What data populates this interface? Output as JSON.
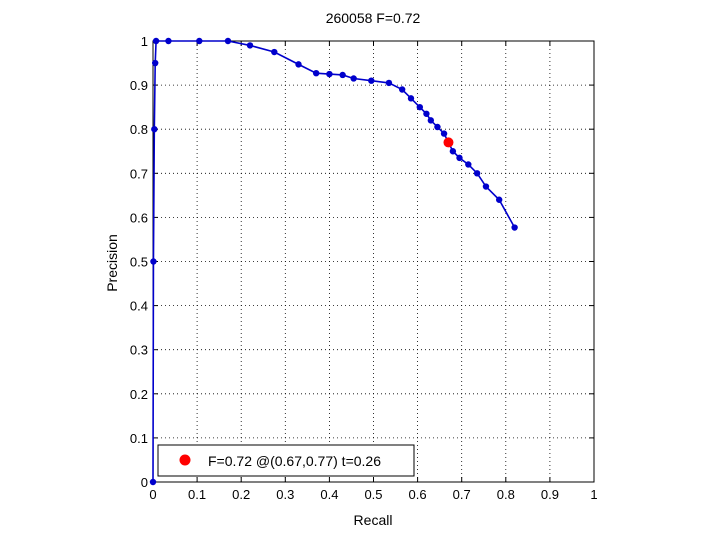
{
  "chart_data": {
    "type": "line",
    "title": "260058 F=0.72",
    "xlabel": "Recall",
    "ylabel": "Precision",
    "xlim": [
      0,
      1
    ],
    "ylim": [
      0,
      1
    ],
    "grid": true,
    "xticks": [
      "0",
      "0.1",
      "0.2",
      "0.3",
      "0.4",
      "0.5",
      "0.6",
      "0.7",
      "0.8",
      "0.9",
      "1"
    ],
    "yticks": [
      "0",
      "0.1",
      "0.2",
      "0.3",
      "0.4",
      "0.5",
      "0.6",
      "0.7",
      "0.8",
      "0.9",
      "1"
    ],
    "series": [
      {
        "color": "#0000cc",
        "x": [
          0,
          0.001,
          0.003,
          0.005,
          0.007,
          0.035,
          0.105,
          0.17,
          0.22,
          0.275,
          0.33,
          0.37,
          0.4,
          0.43,
          0.455,
          0.495,
          0.535,
          0.565,
          0.585,
          0.605,
          0.62,
          0.63,
          0.645,
          0.66,
          0.68,
          0.695,
          0.715,
          0.735,
          0.755,
          0.785,
          0.82
        ],
        "y": [
          0,
          0.5,
          0.8,
          0.95,
          1.0,
          1.0,
          1.0,
          1.0,
          0.99,
          0.975,
          0.947,
          0.927,
          0.925,
          0.923,
          0.915,
          0.91,
          0.905,
          0.89,
          0.87,
          0.85,
          0.835,
          0.82,
          0.805,
          0.79,
          0.75,
          0.735,
          0.72,
          0.7,
          0.67,
          0.64,
          0.577
        ]
      }
    ],
    "highlight_point": {
      "x": 0.67,
      "y": 0.77,
      "color": "#ff0000"
    },
    "legend": {
      "position": "bottom-left",
      "label": "F=0.72 @(0.67,0.77) t=0.26"
    }
  }
}
